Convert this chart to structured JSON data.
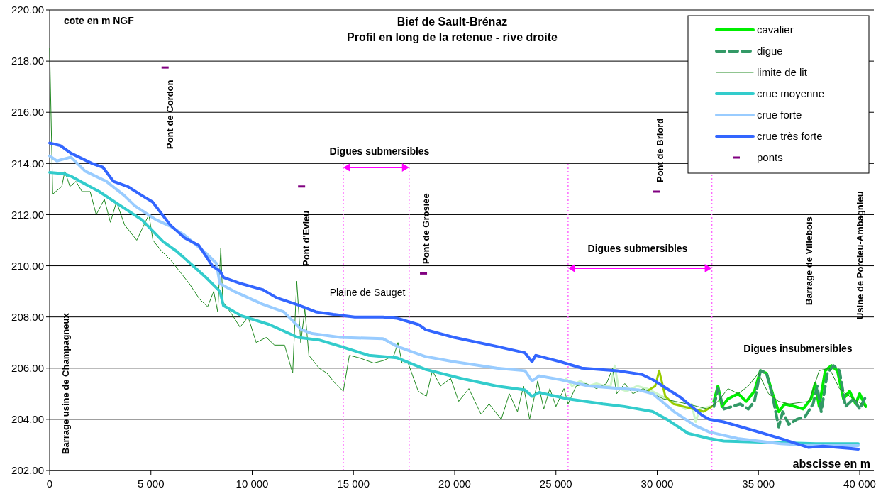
{
  "chart_data": {
    "type": "line",
    "title": "Bief de Sault-Brénaz",
    "subtitle": "Profil en long de la retenue - rive droite",
    "ylabel": "cote en m NGF",
    "xlabel": "abscisse en m",
    "xlim": [
      0,
      40700
    ],
    "ylim": [
      202,
      220
    ],
    "xticks": [
      {
        "value": 0,
        "label": "0"
      },
      {
        "value": 5000,
        "label": "5 000"
      },
      {
        "value": 10000,
        "label": "10 000"
      },
      {
        "value": 15000,
        "label": "15 000"
      },
      {
        "value": 20000,
        "label": "20 000"
      },
      {
        "value": 25000,
        "label": "25 000"
      },
      {
        "value": 30000,
        "label": "30 000"
      },
      {
        "value": 35000,
        "label": "35 000"
      },
      {
        "value": 40000,
        "label": "40 000"
      }
    ],
    "yticks": [
      {
        "value": 202,
        "label": "202.00"
      },
      {
        "value": 204,
        "label": "204.00"
      },
      {
        "value": 206,
        "label": "206.00"
      },
      {
        "value": 208,
        "label": "208.00"
      },
      {
        "value": 210,
        "label": "210.00"
      },
      {
        "value": 212,
        "label": "212.00"
      },
      {
        "value": 214,
        "label": "214.00"
      },
      {
        "value": 216,
        "label": "216.00"
      },
      {
        "value": 218,
        "label": "218.00"
      },
      {
        "value": 220,
        "label": "220.00"
      }
    ],
    "grid": "y",
    "legend": "top right",
    "series": [
      {
        "name": "cavalier",
        "color": "#00ee00",
        "x": [
          32800,
          33000,
          33200,
          33500,
          34000,
          34400,
          34800,
          35100,
          35400,
          35700,
          36000,
          36300,
          36800,
          37200,
          37600,
          37800,
          38000,
          38300,
          38600,
          38900,
          39200,
          39500,
          39800,
          40000,
          40300
        ],
        "values": [
          204.7,
          205.3,
          204.5,
          204.8,
          205.0,
          204.7,
          205.1,
          205.9,
          205.8,
          205.0,
          204.3,
          204.6,
          204.5,
          204.4,
          204.8,
          205.4,
          204.5,
          205.9,
          206.1,
          205.9,
          204.8,
          205.1,
          204.6,
          205.0,
          204.5
        ]
      },
      {
        "name": "digue",
        "color": "#339966",
        "line_style": "dashed",
        "x": [
          32800,
          33000,
          33300,
          33700,
          34100,
          34500,
          34800,
          35100,
          35400,
          35700,
          36000,
          36200,
          36500,
          36900,
          37300,
          37700,
          37900,
          38100,
          38400,
          38700,
          39000,
          39300,
          39700,
          40000,
          40300
        ],
        "values": [
          204.5,
          205.2,
          204.4,
          204.5,
          204.6,
          204.4,
          204.7,
          205.9,
          205.8,
          204.9,
          203.7,
          204.3,
          203.8,
          204.0,
          204.1,
          204.6,
          205.3,
          204.3,
          205.8,
          206.1,
          205.9,
          204.5,
          204.8,
          204.4,
          204.9
        ]
      },
      {
        "color": "#ccf5c8",
        "x": [
          25500,
          25800,
          26200,
          26600,
          27000,
          27400,
          27700,
          27900,
          28100,
          28500,
          29000,
          29500,
          30000,
          30500,
          31000,
          31400,
          31700,
          31900,
          32100,
          32600
        ],
        "values": [
          205.6,
          205.3,
          205.5,
          205.3,
          205.4,
          205.3,
          205.3,
          206.1,
          205.2,
          205.1,
          205.3,
          205.2,
          205.0,
          204.8,
          204.6,
          204.4,
          204.6,
          203.9,
          204.4,
          204.5
        ]
      },
      {
        "color": "#99cc00",
        "x": [
          29500,
          29900,
          30100,
          30400,
          30800,
          31300,
          31800,
          32300,
          32700
        ],
        "values": [
          205.1,
          205.3,
          205.9,
          204.9,
          204.6,
          204.5,
          204.4,
          204.3,
          204.5
        ]
      },
      {
        "name": "limite de lit",
        "color": "#228b22",
        "x": [
          0,
          150,
          600,
          750,
          1000,
          1300,
          1600,
          2000,
          2300,
          2700,
          3000,
          3300,
          3700,
          4300,
          4900,
          5100,
          5500,
          6000,
          6500,
          6900,
          7400,
          7800,
          8100,
          8300,
          8450,
          8550,
          9000,
          9400,
          9800,
          10200,
          10700,
          11100,
          11600,
          12000,
          12200,
          12400,
          12600,
          12800,
          13300,
          13700,
          14100,
          14500,
          14800,
          15300,
          16000,
          16500,
          17000,
          17200,
          17400,
          17700,
          18200,
          18600,
          18900,
          19300,
          19800,
          20200,
          20700,
          21300,
          21700,
          22300,
          22700,
          23100,
          23400,
          23700,
          24100,
          24400,
          24700,
          25000,
          25400,
          25600,
          26000,
          26500,
          27000,
          27500,
          27800,
          28000,
          28400,
          28800,
          29300,
          29800,
          30300,
          30900,
          31500,
          32000,
          32500,
          33000,
          33500,
          34000,
          34500,
          35000,
          35500,
          36000,
          36500,
          37500,
          38000,
          38500,
          39000,
          39500,
          40300
        ],
        "values": [
          218.5,
          212.8,
          213.1,
          213.7,
          213.1,
          213.3,
          212.9,
          212.9,
          212.0,
          212.6,
          211.7,
          212.5,
          211.6,
          211.0,
          212.0,
          211.0,
          210.6,
          210.2,
          209.7,
          209.3,
          208.7,
          208.4,
          209.0,
          208.2,
          210.7,
          208.6,
          208.1,
          207.6,
          208.0,
          207.0,
          207.2,
          206.9,
          206.9,
          205.8,
          209.4,
          207.0,
          208.3,
          206.5,
          206.0,
          205.8,
          205.4,
          205.1,
          206.5,
          206.4,
          206.2,
          206.3,
          206.5,
          207.0,
          206.2,
          206.2,
          205.1,
          204.9,
          205.9,
          205.3,
          205.6,
          204.7,
          205.2,
          204.2,
          204.6,
          204.0,
          205.0,
          204.3,
          205.3,
          204.0,
          205.5,
          204.4,
          205.2,
          204.5,
          205.2,
          204.6,
          205.3,
          205.4,
          205.2,
          205.4,
          206.0,
          205.0,
          205.4,
          205.0,
          205.2,
          205.0,
          204.8,
          204.7,
          204.6,
          204.5,
          204.4,
          204.7,
          205.2,
          205.0,
          205.3,
          205.8,
          205.0,
          204.7,
          204.6,
          204.7,
          205.9,
          206.0,
          205.2,
          204.9,
          204.5
        ]
      },
      {
        "name": "crue moyenne",
        "color": "#33cccc",
        "x": [
          0,
          700,
          1050,
          1750,
          2450,
          3500,
          4550,
          5600,
          6300,
          7710,
          8410,
          8580,
          9460,
          10860,
          12260,
          13310,
          14360,
          15760,
          17160,
          18570,
          20320,
          22070,
          23470,
          23820,
          24170,
          25570,
          27320,
          28380,
          29780,
          30480,
          31530,
          32580,
          33280,
          35380,
          37830,
          39930
        ],
        "values": [
          213.65,
          213.6,
          213.5,
          213.2,
          212.9,
          212.35,
          211.8,
          210.95,
          210.55,
          209.55,
          209.0,
          208.45,
          208.05,
          207.7,
          207.2,
          207.1,
          206.85,
          206.5,
          206.4,
          205.95,
          205.6,
          205.3,
          205.15,
          204.9,
          205.05,
          204.8,
          204.6,
          204.5,
          204.3,
          204.0,
          203.45,
          203.25,
          203.15,
          203.1,
          203.05,
          203.05
        ]
      },
      {
        "name": "crue forte",
        "color": "#99ccff",
        "x": [
          0,
          350,
          1050,
          1750,
          2800,
          3680,
          4200,
          5250,
          5950,
          6650,
          7710,
          8230,
          8410,
          9110,
          10510,
          11560,
          12440,
          12960,
          14360,
          16460,
          17160,
          18570,
          19970,
          22070,
          23470,
          23820,
          24170,
          25220,
          26630,
          29080,
          29780,
          30830,
          31880,
          32580,
          33980,
          36090,
          37830,
          39930
        ],
        "values": [
          214.3,
          214.1,
          214.25,
          213.7,
          213.3,
          212.75,
          212.35,
          211.8,
          211.55,
          211.2,
          210.5,
          210.1,
          209.3,
          209.0,
          208.5,
          208.2,
          207.5,
          207.35,
          207.2,
          207.15,
          206.85,
          206.45,
          206.25,
          206.0,
          205.9,
          205.5,
          205.7,
          205.55,
          205.3,
          205.15,
          205.0,
          204.3,
          203.75,
          203.5,
          203.25,
          203.05,
          202.97,
          202.97
        ]
      },
      {
        "name": "crue très forte",
        "color": "#3366ff",
        "x": [
          0,
          525,
          1050,
          2100,
          2630,
          3150,
          3850,
          4550,
          5080,
          5950,
          6650,
          7360,
          8060,
          8410,
          8580,
          9460,
          10510,
          11210,
          12260,
          13140,
          14010,
          15060,
          16460,
          17160,
          18220,
          18570,
          19970,
          22070,
          23470,
          23820,
          24000,
          25220,
          26280,
          28030,
          29250,
          29780,
          31170,
          32230,
          32580,
          33280,
          34680,
          36090,
          37480,
          38180,
          39580,
          39930
        ],
        "values": [
          214.8,
          214.7,
          214.4,
          214.0,
          213.85,
          213.3,
          213.1,
          212.75,
          212.5,
          211.6,
          211.1,
          210.8,
          209.97,
          209.8,
          209.55,
          209.3,
          209.07,
          208.75,
          208.47,
          208.2,
          208.1,
          208.0,
          208.0,
          207.95,
          207.7,
          207.5,
          207.2,
          206.85,
          206.6,
          206.25,
          206.5,
          206.25,
          206.0,
          205.9,
          205.75,
          205.55,
          204.85,
          204.15,
          204.0,
          203.9,
          203.58,
          203.25,
          202.9,
          202.95,
          202.86,
          202.83
        ]
      },
      {
        "name": "ponts",
        "type": "scatter",
        "color": "#800080",
        "x": [
          5700,
          12440,
          18460,
          29950
        ],
        "values": [
          217.75,
          213.1,
          209.7,
          212.9
        ]
      }
    ],
    "ref_lines": [
      {
        "axis": "x",
        "value": 14500,
        "color": "#ff66ff",
        "line_style": "dotted"
      },
      {
        "axis": "x",
        "value": 17750,
        "color": "#ff66ff",
        "line_style": "dotted"
      },
      {
        "axis": "x",
        "value": 25600,
        "color": "#ff66ff",
        "line_style": "dotted"
      },
      {
        "axis": "x",
        "value": 32700,
        "color": "#ff66ff",
        "line_style": "dotted"
      }
    ],
    "annotations": [
      "Barrage usine de Champagneux",
      "Pont de Cordon",
      "Pont d'Evieu",
      "Pont de Grosiée",
      "Pont de Briord",
      "Barrage de Villebois",
      "Usine de Porcieu-Ambagnieu",
      "Digues submersibles",
      "Digues submersibles",
      "Plaine de Sauget",
      "Digues insubmersibles"
    ]
  }
}
